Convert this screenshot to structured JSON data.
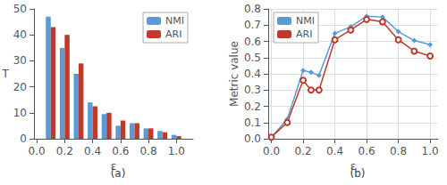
{
  "chart_data": [
    {
      "type": "bar",
      "xlabel": "ε",
      "ylabel": "T",
      "annotation": "(a)",
      "x": [
        0.1,
        0.2,
        0.3,
        0.4,
        0.5,
        0.6,
        0.7,
        0.8,
        0.9,
        1.0
      ],
      "series": [
        {
          "name": "NMI",
          "color": "#5b9bd5",
          "values": [
            47,
            35,
            25,
            14,
            9.5,
            5,
            6,
            4,
            3,
            1.5
          ]
        },
        {
          "name": "ARI",
          "color": "#c0392b",
          "values": [
            43,
            40,
            29,
            12.5,
            10,
            7,
            6,
            4,
            2.5,
            1
          ]
        }
      ],
      "xlim": [
        -0.02,
        1.12
      ],
      "xticks": [
        {
          "value": 0,
          "label": "0.0"
        },
        0.2,
        0.4,
        0.6,
        0.8,
        {
          "value": 1.0,
          "label": "1.0"
        }
      ],
      "ylim": [
        0,
        50
      ],
      "yticks": [
        0,
        10,
        20,
        30,
        40,
        50
      ],
      "legend": "upper right",
      "grid": false
    },
    {
      "type": "line",
      "xlabel": "ε",
      "ylabel": "Metric value",
      "annotation": "(b)",
      "x": [
        0.0,
        0.1,
        0.2,
        0.25,
        0.3,
        0.4,
        0.5,
        0.6,
        0.7,
        0.8,
        0.9,
        1.0
      ],
      "series": [
        {
          "name": "NMI",
          "color": "#5b9bd5",
          "marker": "diamond",
          "values": [
            0.01,
            0.12,
            0.42,
            0.41,
            0.39,
            0.65,
            0.69,
            0.755,
            0.75,
            0.66,
            0.605,
            0.58
          ]
        },
        {
          "name": "ARI",
          "color": "#c0392b",
          "marker": "circle",
          "values": [
            0.01,
            0.1,
            0.36,
            0.3,
            0.3,
            0.61,
            0.67,
            0.735,
            0.72,
            0.61,
            0.54,
            0.51
          ]
        }
      ],
      "xlim": [
        -0.02,
        1.05
      ],
      "xticks": [
        {
          "value": 0,
          "label": "0.0"
        },
        0.2,
        0.4,
        0.6,
        0.8,
        {
          "value": 1.0,
          "label": "1.0"
        }
      ],
      "ylim": [
        0,
        0.8
      ],
      "yticks": [
        {
          "value": 0.0,
          "label": "0.0"
        },
        0.1,
        0.2,
        0.3,
        0.4,
        0.5,
        0.6,
        0.7,
        0.8
      ],
      "legend": "upper left",
      "grid": true
    }
  ]
}
